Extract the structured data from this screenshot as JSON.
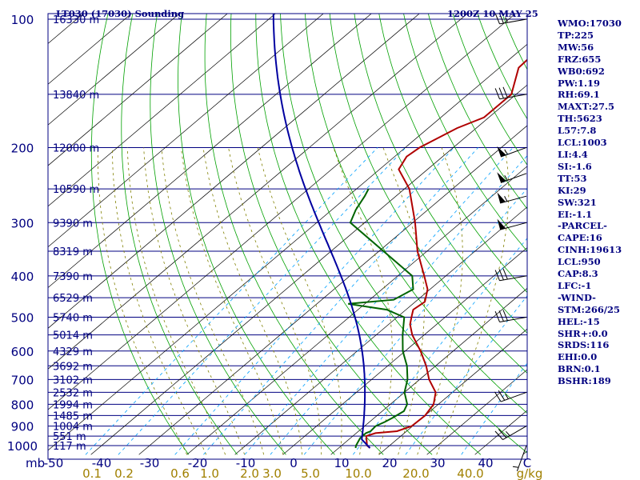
{
  "header": {
    "station": "LT030 (17030) Sounding",
    "valid_time": "1200Z 10 MAY 25"
  },
  "indices": [
    {
      "key": "WMO",
      "value": "17030"
    },
    {
      "key": "TP",
      "value": "225"
    },
    {
      "key": "MW",
      "value": "56"
    },
    {
      "key": "FRZ",
      "value": "655"
    },
    {
      "key": "WB0",
      "value": "692"
    },
    {
      "key": "PW",
      "value": "1.19"
    },
    {
      "key": "RH",
      "value": "69.1"
    },
    {
      "key": "MAXT",
      "value": "27.5"
    },
    {
      "key": "TH",
      "value": "5623"
    },
    {
      "key": "L57",
      "value": "7.8"
    },
    {
      "key": "LCL",
      "value": "1003"
    },
    {
      "key": "LI",
      "value": "4.4"
    },
    {
      "key": "SI",
      "value": "-1.6"
    },
    {
      "key": "TT",
      "value": "53"
    },
    {
      "key": "KI",
      "value": "29"
    },
    {
      "key": "SW",
      "value": "321"
    },
    {
      "key": "EI",
      "value": "-1.1"
    },
    {
      "key": "",
      "value": "-PARCEL-"
    },
    {
      "key": "CAPE",
      "value": "16"
    },
    {
      "key": "CINH",
      "value": "19613"
    },
    {
      "key": "LCL",
      "value": "950"
    },
    {
      "key": "CAP",
      "value": "8.3"
    },
    {
      "key": "LFC",
      "value": "-1"
    },
    {
      "key": "",
      "value": "-WIND-"
    },
    {
      "key": "STM",
      "value": "266/25"
    },
    {
      "key": "HEL",
      "value": "-15"
    },
    {
      "key": "SHR+",
      "value": "0.0"
    },
    {
      "key": "SRDS",
      "value": "116"
    },
    {
      "key": "EHI",
      "value": "0.0"
    },
    {
      "key": "BRN",
      "value": "0.1"
    },
    {
      "key": "BSHR",
      "value": "189"
    }
  ],
  "colors": {
    "frame": "#000080",
    "isobar": "#000080",
    "isotherm": "#000000",
    "dry_adiabat": "#00a000",
    "moist_adiabat": "#808000",
    "mixing_ratio": "#00a0ff",
    "temperature": "#b00000",
    "dewpoint": "#006400",
    "parcel": "#0000a0",
    "tick_label": "#000080",
    "mixratio_label": "#a08000"
  },
  "chart_data": {
    "type": "line",
    "diagram": "skew-T log-P",
    "xlabel": "C",
    "ylabel": "mb",
    "mixing_ratio_unit": "g/kg",
    "xlim": [
      -50,
      50
    ],
    "ylim": [
      1000,
      100
    ],
    "yscale": "log",
    "pressure_ticks": [
      100,
      200,
      300,
      400,
      500,
      600,
      700,
      800,
      900,
      1000
    ],
    "pressure_tick_labels": [
      "100",
      "200",
      "300",
      "400",
      "500",
      "600",
      "700",
      "800",
      "900",
      "1000"
    ],
    "temperature_ticks": [
      -50,
      -40,
      -30,
      -20,
      -10,
      0,
      10,
      20,
      30,
      40
    ],
    "temperature_tick_labels": [
      "-50",
      "-40",
      "-30",
      "-20",
      "-10",
      "0",
      "10",
      "20",
      "30",
      "40"
    ],
    "mixing_ratio_labels": [
      "0.1",
      "0.2",
      "0.6",
      "1.0",
      "2.0",
      "3.0",
      "5.0",
      "10.0",
      "20.0",
      "40.0"
    ],
    "mixing_ratio_values": [
      0.1,
      0.2,
      0.6,
      1.0,
      2.0,
      3.0,
      5.0,
      10.0,
      20.0,
      40.0
    ],
    "height_labels": [
      {
        "p": 100,
        "label": "16330 m"
      },
      {
        "p": 150,
        "label": "13840 m"
      },
      {
        "p": 200,
        "label": "12000 m"
      },
      {
        "p": 250,
        "label": "10590 m"
      },
      {
        "p": 300,
        "label": "9390 m"
      },
      {
        "p": 350,
        "label": "8319 m"
      },
      {
        "p": 400,
        "label": "7390 m"
      },
      {
        "p": 450,
        "label": "6529 m"
      },
      {
        "p": 500,
        "label": "5740 m"
      },
      {
        "p": 550,
        "label": "5014 m"
      },
      {
        "p": 600,
        "label": "4329 m"
      },
      {
        "p": 650,
        "label": "3692 m"
      },
      {
        "p": 700,
        "label": "3102 m"
      },
      {
        "p": 750,
        "label": "2532 m"
      },
      {
        "p": 800,
        "label": "1994 m"
      },
      {
        "p": 850,
        "label": "1485 m"
      },
      {
        "p": 900,
        "label": "1004 m"
      },
      {
        "p": 950,
        "label": "551 m"
      },
      {
        "p": 1000,
        "label": "117 m"
      }
    ],
    "dry_adiabats_theta_K": [
      250,
      260,
      270,
      280,
      290,
      300,
      310,
      320,
      330,
      340,
      350,
      360,
      370,
      380,
      390,
      400,
      410,
      420,
      430,
      440,
      450,
      460,
      470,
      480,
      490,
      500
    ],
    "moist_adiabats_C": [
      -20,
      -16,
      -12,
      -8,
      -4,
      0,
      4,
      8,
      12,
      16,
      20,
      24,
      28,
      32
    ],
    "series": [
      {
        "name": "",
        "kind": "temperature",
        "points": [
          [
            1013,
            16.5
          ],
          [
            1000,
            15.3
          ],
          [
            950,
            12.8
          ],
          [
            935,
            14.0
          ],
          [
            925,
            18.0
          ],
          [
            900,
            19.8
          ],
          [
            850,
            20.0
          ],
          [
            800,
            19.0
          ],
          [
            750,
            16.5
          ],
          [
            700,
            12.0
          ],
          [
            650,
            8.0
          ],
          [
            600,
            3.2
          ],
          [
            550,
            -2.5
          ],
          [
            520,
            -5.5
          ],
          [
            500,
            -7.0
          ],
          [
            480,
            -8.5
          ],
          [
            460,
            -8.0
          ],
          [
            430,
            -10.5
          ],
          [
            400,
            -14.5
          ],
          [
            350,
            -22.0
          ],
          [
            300,
            -29.5
          ],
          [
            250,
            -39.0
          ],
          [
            225,
            -46.0
          ],
          [
            210,
            -47.5
          ],
          [
            200,
            -47.0
          ],
          [
            180,
            -44.0
          ],
          [
            170,
            -41.0
          ],
          [
            150,
            -41.0
          ],
          [
            130,
            -46.0
          ],
          [
            115,
            -46.5
          ],
          [
            105,
            -47.0
          ],
          [
            100,
            -47.5
          ]
        ]
      },
      {
        "name": "",
        "kind": "dewpoint",
        "points": [
          [
            1013,
            13.5
          ],
          [
            1000,
            13.0
          ],
          [
            960,
            12.0
          ],
          [
            935,
            12.0
          ],
          [
            925,
            12.5
          ],
          [
            900,
            12.3
          ],
          [
            880,
            13.2
          ],
          [
            860,
            13.8
          ],
          [
            830,
            14.5
          ],
          [
            800,
            13.5
          ],
          [
            750,
            10.0
          ],
          [
            700,
            7.5
          ],
          [
            650,
            4.0
          ],
          [
            600,
            -0.5
          ],
          [
            550,
            -4.5
          ],
          [
            500,
            -8.5
          ],
          [
            480,
            -14.0
          ],
          [
            465,
            -23.5
          ],
          [
            455,
            -15.0
          ],
          [
            430,
            -13.5
          ],
          [
            400,
            -17.0
          ],
          [
            300,
            -43.0
          ],
          [
            280,
            -45.0
          ],
          [
            260,
            -46.5
          ],
          [
            250,
            -47.5
          ]
        ]
      }
    ],
    "parcel": {
      "name": "",
      "start_pressure": 1013,
      "start_temperature": 16.5,
      "start_dewpoint": 13.5
    },
    "wind_barbs": [
      {
        "p": 100,
        "dir": 260,
        "spd": 25
      },
      {
        "p": 150,
        "dir": 260,
        "spd": 30
      },
      {
        "p": 200,
        "dir": 250,
        "spd": 55
      },
      {
        "p": 230,
        "dir": 250,
        "spd": 55
      },
      {
        "p": 260,
        "dir": 255,
        "spd": 55
      },
      {
        "p": 300,
        "dir": 255,
        "spd": 50
      },
      {
        "p": 400,
        "dir": 260,
        "spd": 30
      },
      {
        "p": 500,
        "dir": 260,
        "spd": 30
      },
      {
        "p": 750,
        "dir": 250,
        "spd": 25
      },
      {
        "p": 900,
        "dir": 240,
        "spd": 25
      },
      {
        "p": 1000,
        "dir": 200,
        "spd": 5
      }
    ]
  }
}
